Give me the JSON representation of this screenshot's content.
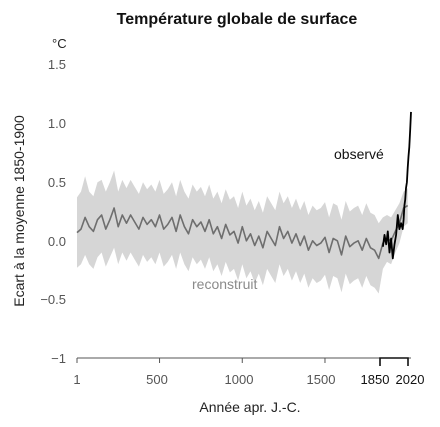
{
  "chart_data": {
    "type": "line",
    "title": "Température globale de surface",
    "unit_label": "°C",
    "xlabel": "Année apr. J.-C.",
    "ylabel": "Ecart à la moyenne 1850-1900",
    "xlim": [
      1,
      2020
    ],
    "ylim": [
      -1,
      1.5
    ],
    "x_ticks": [
      "1",
      "500",
      "1000",
      "1500",
      "2020"
    ],
    "x_tick_extra": "1850",
    "y_ticks": [
      "1.5",
      "1.0",
      "0.5",
      "0.0",
      "−0.5",
      "−1"
    ],
    "annotations": {
      "observed": "observé",
      "reconstructed": "reconstruit"
    },
    "colors": {
      "reconstructed_line": "#6e6e6e",
      "uncertainty_band": "#d6d6d6",
      "observed_line": "#000000"
    },
    "series": [
      {
        "x": [
          1,
          25,
          50,
          75,
          100,
          125,
          150,
          175,
          200,
          225,
          250,
          275,
          300,
          325,
          350,
          375,
          400,
          425,
          450,
          475,
          500,
          525,
          550,
          575,
          600,
          625,
          650,
          675,
          700,
          725,
          750,
          775,
          800,
          825,
          850,
          875,
          900,
          925,
          950,
          975,
          1000,
          1025,
          1050,
          1075,
          1100,
          1125,
          1150,
          1175,
          1200,
          1225,
          1250,
          1275,
          1300,
          1325,
          1350,
          1375,
          1400,
          1425,
          1450,
          1475,
          1500,
          1525,
          1550,
          1575,
          1600,
          1625,
          1650,
          1675,
          1700,
          1725,
          1750,
          1775,
          1800,
          1825,
          1850,
          1875,
          1900,
          1925,
          1950,
          1975,
          2000
        ],
        "values": [
          0.07,
          0.1,
          0.2,
          0.12,
          0.08,
          0.18,
          0.22,
          0.1,
          0.18,
          0.28,
          0.12,
          0.22,
          0.15,
          0.22,
          0.16,
          0.1,
          0.2,
          0.14,
          0.18,
          0.12,
          0.22,
          0.1,
          0.14,
          0.2,
          0.08,
          0.22,
          0.12,
          0.06,
          0.18,
          0.12,
          0.16,
          0.08,
          0.18,
          0.06,
          0.12,
          0.02,
          0.14,
          0.05,
          0.08,
          -0.02,
          0.12,
          0.0,
          0.06,
          -0.04,
          0.04,
          -0.06,
          0.08,
          0.02,
          -0.04,
          0.12,
          0.02,
          0.08,
          -0.02,
          0.06,
          -0.04,
          0.04,
          -0.08,
          0.0,
          -0.04,
          -0.02,
          0.03,
          -0.1,
          0.02,
          0.0,
          -0.12,
          0.04,
          -0.05,
          -0.02,
          0.0,
          -0.08,
          0.02,
          -0.06,
          -0.08,
          -0.15,
          -0.02,
          0.02,
          0.0,
          0.08,
          0.15,
          0.28,
          0.3
        ],
        "band_upper": [
          0.37,
          0.42,
          0.55,
          0.42,
          0.38,
          0.5,
          0.52,
          0.42,
          0.5,
          0.6,
          0.42,
          0.52,
          0.45,
          0.52,
          0.46,
          0.4,
          0.5,
          0.44,
          0.48,
          0.42,
          0.52,
          0.4,
          0.44,
          0.5,
          0.38,
          0.52,
          0.42,
          0.36,
          0.48,
          0.42,
          0.46,
          0.38,
          0.48,
          0.36,
          0.42,
          0.32,
          0.44,
          0.35,
          0.38,
          0.28,
          0.42,
          0.3,
          0.36,
          0.26,
          0.34,
          0.24,
          0.38,
          0.32,
          0.26,
          0.42,
          0.32,
          0.38,
          0.28,
          0.36,
          0.26,
          0.34,
          0.22,
          0.3,
          0.26,
          0.28,
          0.33,
          0.2,
          0.32,
          0.3,
          0.18,
          0.34,
          0.25,
          0.28,
          0.3,
          0.22,
          0.32,
          0.24,
          0.22,
          0.15,
          0.2,
          0.22,
          0.2,
          0.26,
          0.32,
          0.42,
          0.45
        ],
        "band_lower": [
          -0.23,
          -0.2,
          -0.12,
          -0.2,
          -0.24,
          -0.14,
          -0.1,
          -0.22,
          -0.14,
          -0.06,
          -0.2,
          -0.1,
          -0.17,
          -0.1,
          -0.16,
          -0.22,
          -0.12,
          -0.18,
          -0.14,
          -0.2,
          -0.1,
          -0.22,
          -0.18,
          -0.12,
          -0.24,
          -0.1,
          -0.2,
          -0.26,
          -0.14,
          -0.2,
          -0.16,
          -0.24,
          -0.14,
          -0.26,
          -0.2,
          -0.3,
          -0.18,
          -0.27,
          -0.24,
          -0.34,
          -0.2,
          -0.32,
          -0.26,
          -0.36,
          -0.28,
          -0.38,
          -0.24,
          -0.3,
          -0.36,
          -0.2,
          -0.3,
          -0.24,
          -0.34,
          -0.26,
          -0.36,
          -0.28,
          -0.4,
          -0.32,
          -0.36,
          -0.34,
          -0.29,
          -0.42,
          -0.3,
          -0.32,
          -0.44,
          -0.28,
          -0.37,
          -0.34,
          -0.32,
          -0.4,
          -0.3,
          -0.38,
          -0.4,
          -0.45,
          -0.24,
          -0.18,
          -0.2,
          -0.1,
          -0.02,
          0.12,
          0.15
        ]
      },
      {
        "x": [
          1850,
          1860,
          1870,
          1880,
          1890,
          1900,
          1910,
          1920,
          1930,
          1940,
          1950,
          1960,
          1970,
          1975,
          1980,
          1985,
          1990,
          1995,
          2000,
          2005,
          2010,
          2015,
          2020
        ],
        "values": [
          -0.05,
          0.05,
          -0.03,
          0.08,
          -0.1,
          0.02,
          -0.15,
          -0.03,
          0.05,
          0.22,
          0.1,
          0.15,
          0.1,
          0.18,
          0.3,
          0.35,
          0.45,
          0.5,
          0.62,
          0.72,
          0.8,
          0.95,
          1.1
        ]
      }
    ]
  }
}
